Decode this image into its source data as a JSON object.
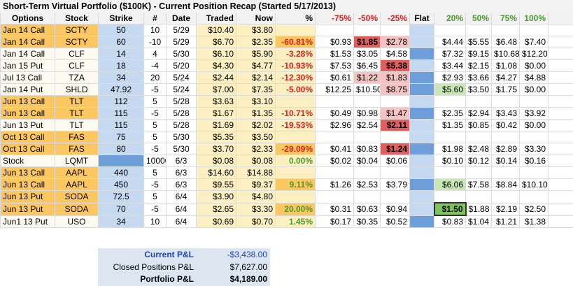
{
  "title": "Short-Term Virtual Portfolio ($100K) - Current Position Recap (Started 5/17/2013)",
  "table": {
    "header": [
      "Options",
      "Stock",
      "Strike",
      "#",
      "Date",
      "Traded",
      "Now",
      "%",
      "-75%",
      "-50%",
      "-25%",
      "Flat",
      "20%",
      "50%",
      "75%",
      "100%"
    ],
    "rows": [
      [
        "Jan 14 Call",
        "SCTY",
        "50",
        "10",
        "5/29",
        "$10.40",
        "$3.80"
      ],
      [
        "Jan 14 Call",
        "SCTY",
        "60",
        "-10",
        "5/29",
        "$6.70",
        "$2.35",
        "-60.81%",
        "$0.93",
        "$1.85",
        "$2.78",
        null,
        "$4.44",
        "$5.55",
        "$6.48",
        "$7.40"
      ],
      [
        "Jan 14 Call",
        "CLF",
        "14",
        "4",
        "5/30",
        "$6.10",
        "$5.90",
        "-3.28%",
        "$1.53",
        "$3.05",
        "$4.58",
        null,
        "$7.32",
        "$9.15",
        "$10.68",
        "$12.20"
      ],
      [
        "Jan 15 Put",
        "CLF",
        "18",
        "-4",
        "5/20",
        "$4.30",
        "$4.77",
        "-10.93%",
        "$7.53",
        "$6.45",
        "$5.38",
        null,
        "$3.44",
        "$2.15",
        "$1.08",
        "$0.00"
      ],
      [
        "Jul 13 Call",
        "TZA",
        "34",
        "20",
        "5/24",
        "$2.44",
        "$2.14",
        "-12.30%",
        "$0.61",
        "$1.22",
        "$1.83",
        null,
        "$2.93",
        "$3.66",
        "$4.27",
        "$4.88"
      ],
      [
        "Jan 14 Put",
        "SHLD",
        "47.92",
        "-5",
        "5/24",
        "$7.00",
        "$7.35",
        "-5.00%",
        "$12.25",
        "$10.50",
        "$8.75",
        null,
        "$5.60",
        "$3.50",
        "$1.75",
        "$0.00"
      ],
      [
        "Jun 13 Call",
        "TLT",
        "112",
        "5",
        "5/28",
        "$3.63",
        "$3.10"
      ],
      [
        "Jun 13 Call",
        "TLT",
        "115",
        "-5",
        "5/28",
        "$1.67",
        "$1.35",
        "-10.71%",
        "$0.49",
        "$0.98",
        "$1.47",
        null,
        "$2.35",
        "$2.94",
        "$3.43",
        "$3.92"
      ],
      [
        "Jun 13 Put",
        "TLT",
        "115",
        "5",
        "5/28",
        "$1.69",
        "$2.02",
        "-19.53%",
        "$2.96",
        "$2.54",
        "$2.11",
        null,
        "$1.35",
        "$0.85",
        "$0.42",
        "$0.00"
      ],
      [
        "Oct 13 Call",
        "FAS",
        "75",
        "5",
        "5/30",
        "$5.35",
        "$3.50"
      ],
      [
        "Oct 13 Call",
        "FAS",
        "80",
        "-5",
        "5/30",
        "$3.70",
        "$2.33",
        "-29.09%",
        "$0.41",
        "$0.83",
        "$1.24",
        null,
        "$1.98",
        "$2.48",
        "$2.89",
        "$3.30"
      ],
      [
        "Stock",
        "LQMT",
        null,
        "10000",
        "6/3",
        "$0.08",
        "$0.08",
        "0.00%",
        "$0.02",
        "$0.04",
        "$0.06",
        null,
        "$0.10",
        "$0.12",
        "$0.14",
        "$0.16"
      ],
      [
        "Jun 13 Call",
        "AAPL",
        "440",
        "5",
        "6/3",
        "$14.60",
        "$14.88"
      ],
      [
        "Jun 13 Call",
        "AAPL",
        "450",
        "-5",
        "6/3",
        "$9.55",
        "$9.37",
        "9.11%",
        "$1.26",
        "$2.53",
        "$3.79",
        null,
        "$6.06",
        "$7.58",
        "$8.84",
        "$10.10"
      ],
      [
        "Jun 13 Put",
        "SODA",
        "72.5",
        "5",
        "6/4",
        "$3.90",
        "$4.80"
      ],
      [
        "Jun 13 Put",
        "SODA",
        "70",
        "-5",
        "6/4",
        "$2.65",
        "$3.30",
        "20.00%",
        "$0.31",
        "$0.63",
        "$0.94",
        null,
        "$1.50",
        "$1.88",
        "$2.19",
        "$2.50"
      ],
      [
        "Jun1 13 Put",
        "USO",
        "34",
        "10",
        "6/4",
        "$0.69",
        "$0.70",
        "1.45%",
        "$0.17",
        "$0.35",
        "$0.52",
        null,
        "$0.83",
        "$1.04",
        "$1.21",
        "$1.38"
      ]
    ]
  },
  "summary": [
    {
      "label": "Current P&L",
      "value": "-$3,438.00"
    },
    {
      "label": "Closed Positions P&L",
      "value": "$7,627.00"
    },
    {
      "label": "Portfolio P&L",
      "value": "$4,189.00"
    }
  ]
}
